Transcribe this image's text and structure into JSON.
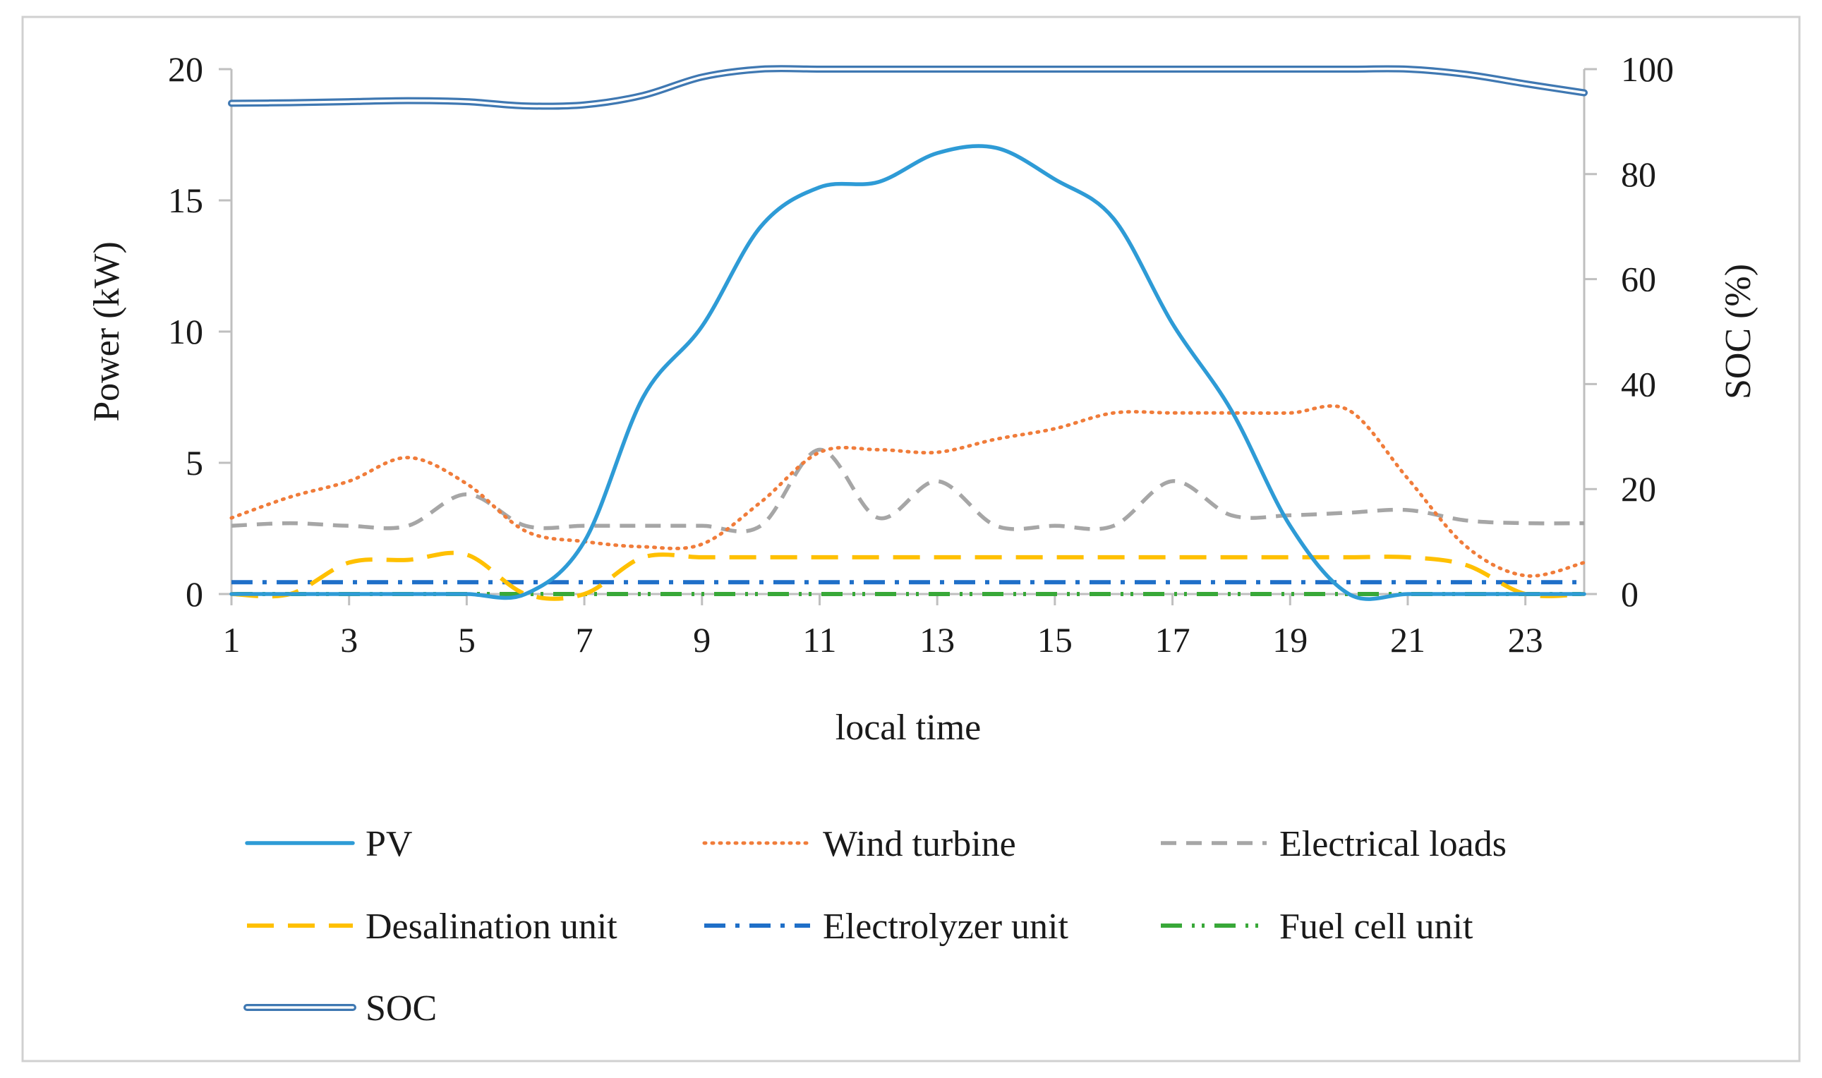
{
  "chart_data": {
    "type": "line",
    "x": [
      1,
      2,
      3,
      4,
      5,
      6,
      7,
      8,
      9,
      10,
      11,
      12,
      13,
      14,
      15,
      16,
      17,
      18,
      19,
      20,
      21,
      22,
      23,
      24
    ],
    "xticks": [
      "1",
      "3",
      "5",
      "7",
      "9",
      "11",
      "13",
      "15",
      "17",
      "19",
      "21",
      "23"
    ],
    "xlabel": "local time",
    "ylabel": "Power (kW)",
    "y2label": "SOC (%)",
    "ylim": [
      0,
      20
    ],
    "y2lim": [
      0,
      100
    ],
    "yticks": [
      "0",
      "5",
      "10",
      "15",
      "20"
    ],
    "y2ticks": [
      "0",
      "20",
      "40",
      "60",
      "80",
      "100"
    ],
    "legend_position": "bottom",
    "colors": {
      "pv": "#2e9bd6",
      "wind": "#f07c3a",
      "loads": "#a6a6a6",
      "desal": "#ffc000",
      "electro": "#1f6fc8",
      "fuel": "#38a838",
      "soc": "#3f78b2",
      "frame": "#d0d0d0",
      "axis": "#bfbfbf"
    },
    "series": [
      {
        "name": "PV",
        "axis": "left",
        "style": "solid",
        "colorKey": "pv",
        "values": [
          0,
          0,
          0,
          0,
          0,
          0,
          2.0,
          7.5,
          10.2,
          14.0,
          15.5,
          15.7,
          16.8,
          17.0,
          15.8,
          14.3,
          10.3,
          7.0,
          2.6,
          0,
          0,
          0,
          0,
          0
        ]
      },
      {
        "name": "Wind turbine",
        "axis": "left",
        "style": "dot",
        "colorKey": "wind",
        "values": [
          2.9,
          3.7,
          4.3,
          5.2,
          4.2,
          2.4,
          2.0,
          1.8,
          1.9,
          3.5,
          5.4,
          5.5,
          5.4,
          5.9,
          6.3,
          6.9,
          6.9,
          6.9,
          6.9,
          7.0,
          4.4,
          1.8,
          0.7,
          1.2
        ]
      },
      {
        "name": "Electrical loads",
        "axis": "left",
        "style": "dash",
        "colorKey": "loads",
        "values": [
          2.6,
          2.7,
          2.6,
          2.6,
          3.8,
          2.6,
          2.6,
          2.6,
          2.6,
          2.6,
          5.5,
          2.9,
          4.3,
          2.6,
          2.6,
          2.6,
          4.3,
          3.0,
          3.0,
          3.1,
          3.2,
          2.8,
          2.7,
          2.7
        ]
      },
      {
        "name": "Desalination unit",
        "axis": "left",
        "style": "longdash",
        "colorKey": "desal",
        "values": [
          0,
          0,
          1.2,
          1.3,
          1.5,
          0,
          0,
          1.4,
          1.4,
          1.4,
          1.4,
          1.4,
          1.4,
          1.4,
          1.4,
          1.4,
          1.4,
          1.4,
          1.4,
          1.4,
          1.4,
          1.1,
          0,
          0
        ]
      },
      {
        "name": "Electrolyzer unit",
        "axis": "left",
        "style": "dashdot",
        "colorKey": "electro",
        "values": [
          0.45,
          0.45,
          0.45,
          0.45,
          0.45,
          0.45,
          0.45,
          0.45,
          0.45,
          0.45,
          0.45,
          0.45,
          0.45,
          0.45,
          0.45,
          0.45,
          0.45,
          0.45,
          0.45,
          0.45,
          0.45,
          0.45,
          0.45,
          0.45
        ]
      },
      {
        "name": "Fuel cell unit",
        "axis": "left",
        "style": "dashdotdot",
        "colorKey": "fuel",
        "values": [
          0,
          0,
          0,
          0,
          0,
          0,
          0,
          0,
          0,
          0,
          0,
          0,
          0,
          0,
          0,
          0,
          0,
          0,
          0,
          0,
          0,
          0,
          0,
          0
        ]
      },
      {
        "name": "SOC",
        "axis": "right",
        "style": "double",
        "colorKey": "soc",
        "values": [
          93.5,
          93.6,
          93.8,
          94.0,
          93.8,
          93.0,
          93.2,
          95.0,
          98.5,
          100,
          100,
          100,
          100,
          100,
          100,
          100,
          100,
          100,
          100,
          100,
          100,
          99.0,
          97.2,
          95.5
        ]
      }
    ]
  }
}
